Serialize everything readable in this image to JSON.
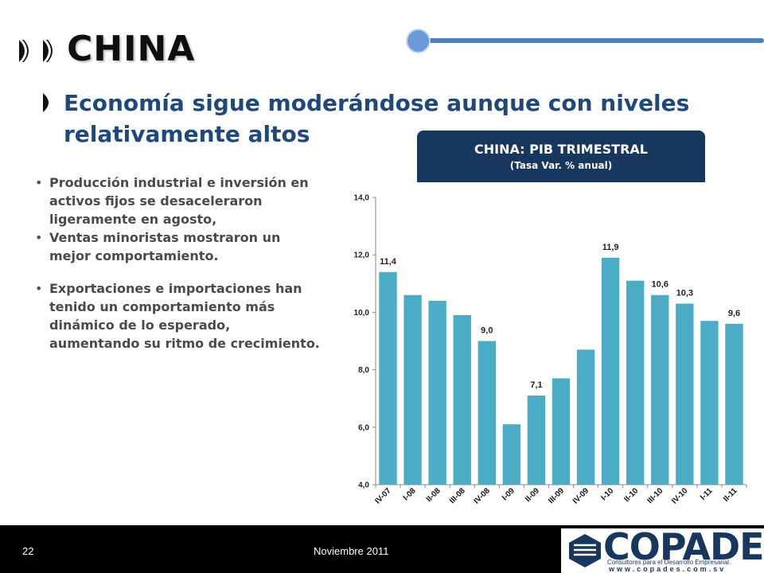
{
  "header": {
    "title": "CHINA"
  },
  "subtitle": "Economía sigue moderándose aunque con niveles relativamente altos",
  "bullets": [
    "Producción industrial e inversión en activos fijos se desaceleraron ligeramente en agosto,",
    "Ventas minoristas mostraron un mejor comportamiento.",
    "Exportaciones e importaciones han tenido un comportamiento más dinámico de lo esperado, aumentando su ritmo de crecimiento."
  ],
  "chart_header": {
    "title": "CHINA: PIB TRIMESTRAL",
    "subtitle": "(Tasa Var. % anual)"
  },
  "footer": {
    "page": "22",
    "date": "Noviembre 2011"
  },
  "logo": {
    "name": "COPADES",
    "tagline": "Consultores para el Desarrollo Empresarial.",
    "url": "www.copades.com.sv"
  },
  "colors": {
    "bar": "#4bacc6",
    "header_bg": "#17375e",
    "subtitle": "#1f497d",
    "accent_line": "#4f81bd"
  },
  "chart_data": {
    "type": "bar",
    "title": "CHINA: PIB TRIMESTRAL",
    "subtitle": "(Tasa Var. % anual)",
    "categories": [
      "IV-07",
      "I-08",
      "II-08",
      "III-08",
      "IV-08",
      "I-09",
      "II-09",
      "III-09",
      "IV-09",
      "I-10",
      "II-10",
      "III-10",
      "IV-10",
      "I-11",
      "II-11"
    ],
    "values": [
      11.4,
      10.6,
      10.4,
      9.9,
      9.0,
      6.1,
      7.1,
      7.7,
      8.7,
      11.9,
      11.1,
      10.6,
      10.3,
      9.7,
      9.6
    ],
    "data_labels": [
      "11,4",
      "",
      "",
      "",
      "9,0",
      "",
      "7,1",
      "",
      "",
      "11,9",
      "",
      "10,6",
      "10,3",
      "",
      "9,6"
    ],
    "yticks": [
      "4,0",
      "6,0",
      "8,0",
      "10,0",
      "12,0",
      "14,0"
    ],
    "ylim": [
      4,
      14
    ],
    "grid": false,
    "legend": "none"
  }
}
